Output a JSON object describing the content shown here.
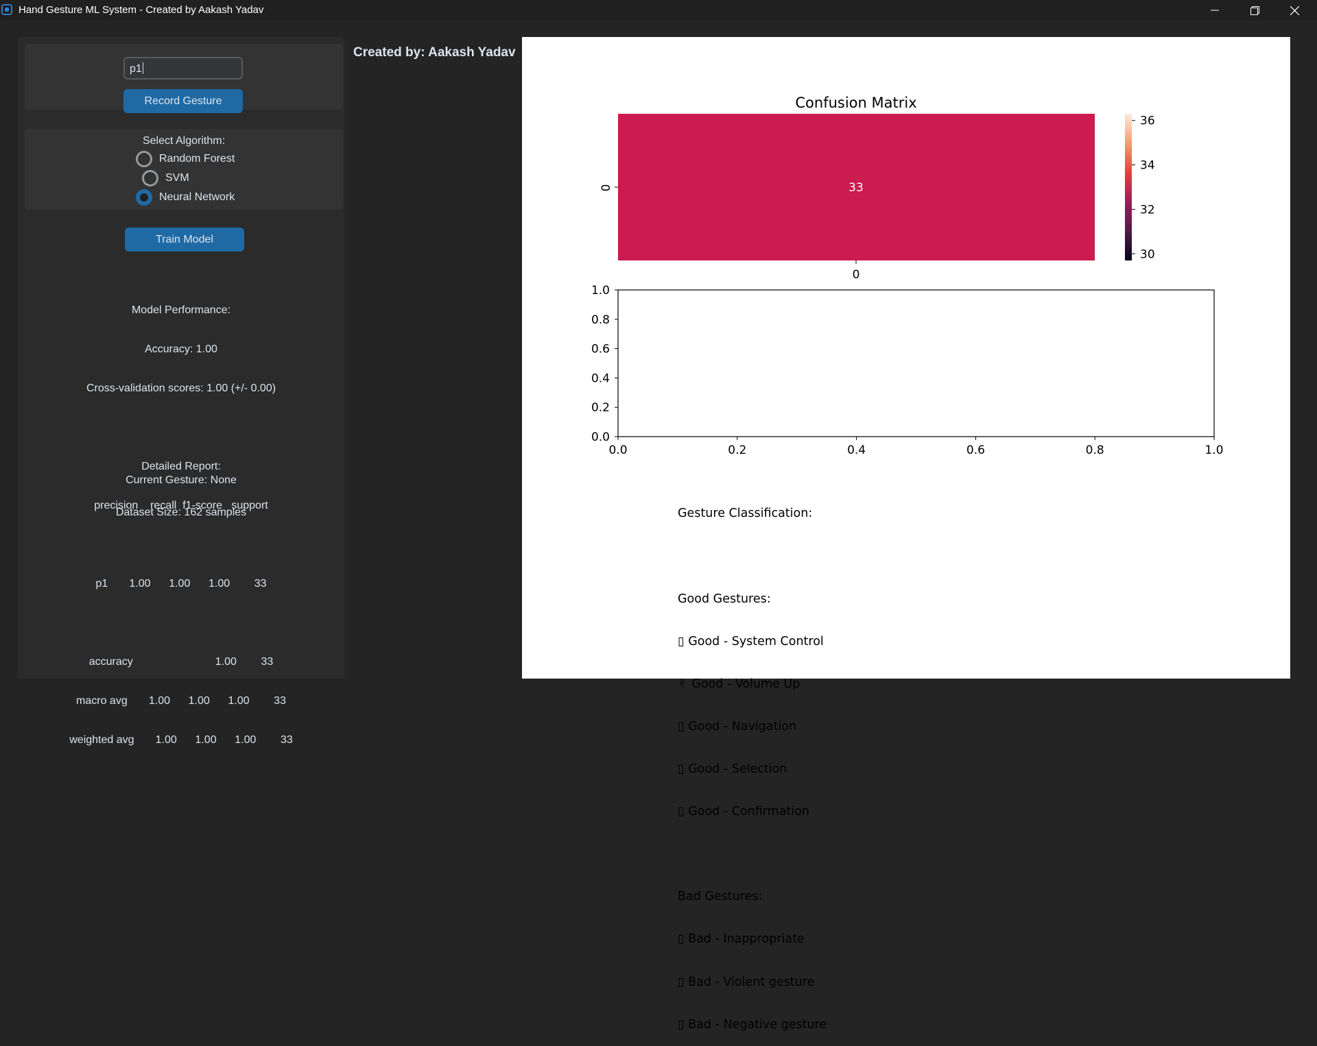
{
  "window": {
    "title": "Hand Gesture ML System - Created by Aakash Yadav"
  },
  "sidebar": {
    "gesture_input_value": "p1",
    "record_button": "Record Gesture",
    "algorithm_label": "Select Algorithm:",
    "algorithms": [
      {
        "label": "Random Forest",
        "selected": false
      },
      {
        "label": "SVM",
        "selected": false
      },
      {
        "label": "Neural Network",
        "selected": true
      }
    ],
    "train_button": "Train Model",
    "performance_lines": [
      "Model Performance:",
      "Accuracy: 1.00",
      "Cross-validation scores: 1.00 (+/- 0.00)",
      "",
      "Detailed Report:",
      "precision    recall  f1-score   support",
      "",
      "p1       1.00      1.00      1.00        33",
      "",
      "accuracy                           1.00        33",
      "macro avg       1.00      1.00      1.00        33",
      "weighted avg       1.00      1.00      1.00        33"
    ],
    "current_gesture": "Current Gesture: None",
    "dataset_size": "Dataset Size: 162 samples"
  },
  "creator_label": "Created by: Aakash Yadav",
  "chart_data": [
    {
      "type": "heatmap",
      "title": "Confusion Matrix",
      "row_labels": [
        "0"
      ],
      "col_labels": [
        "0"
      ],
      "values": [
        [
          33
        ]
      ],
      "cell_color": "#cb1b4f",
      "colorbar": {
        "ticks": [
          "36",
          "34",
          "32",
          "30"
        ],
        "range": [
          29.7,
          36.3
        ]
      }
    },
    {
      "type": "scatter",
      "title": "",
      "x": [],
      "y": [],
      "xlim": [
        0.0,
        1.0
      ],
      "ylim": [
        0.0,
        1.0
      ],
      "xticks": [
        "0.0",
        "0.2",
        "0.4",
        "0.6",
        "0.8",
        "1.0"
      ],
      "yticks": [
        "0.0",
        "0.2",
        "0.4",
        "0.6",
        "0.8",
        "1.0"
      ]
    }
  ],
  "gesture_classification": {
    "title": "Gesture Classification:",
    "good_title": "Good Gestures:",
    "good": [
      "▯ Good - System Control",
      "✌ Good - Volume Up",
      "▯ Good - Navigation",
      "▯ Good - Selection",
      "▯ Good - Confirmation"
    ],
    "bad_title": "Bad Gestures:",
    "bad": [
      "▯ Bad - Inappropriate",
      "▯ Bad - Violent gesture",
      "▯ Bad - Negative gesture"
    ]
  }
}
